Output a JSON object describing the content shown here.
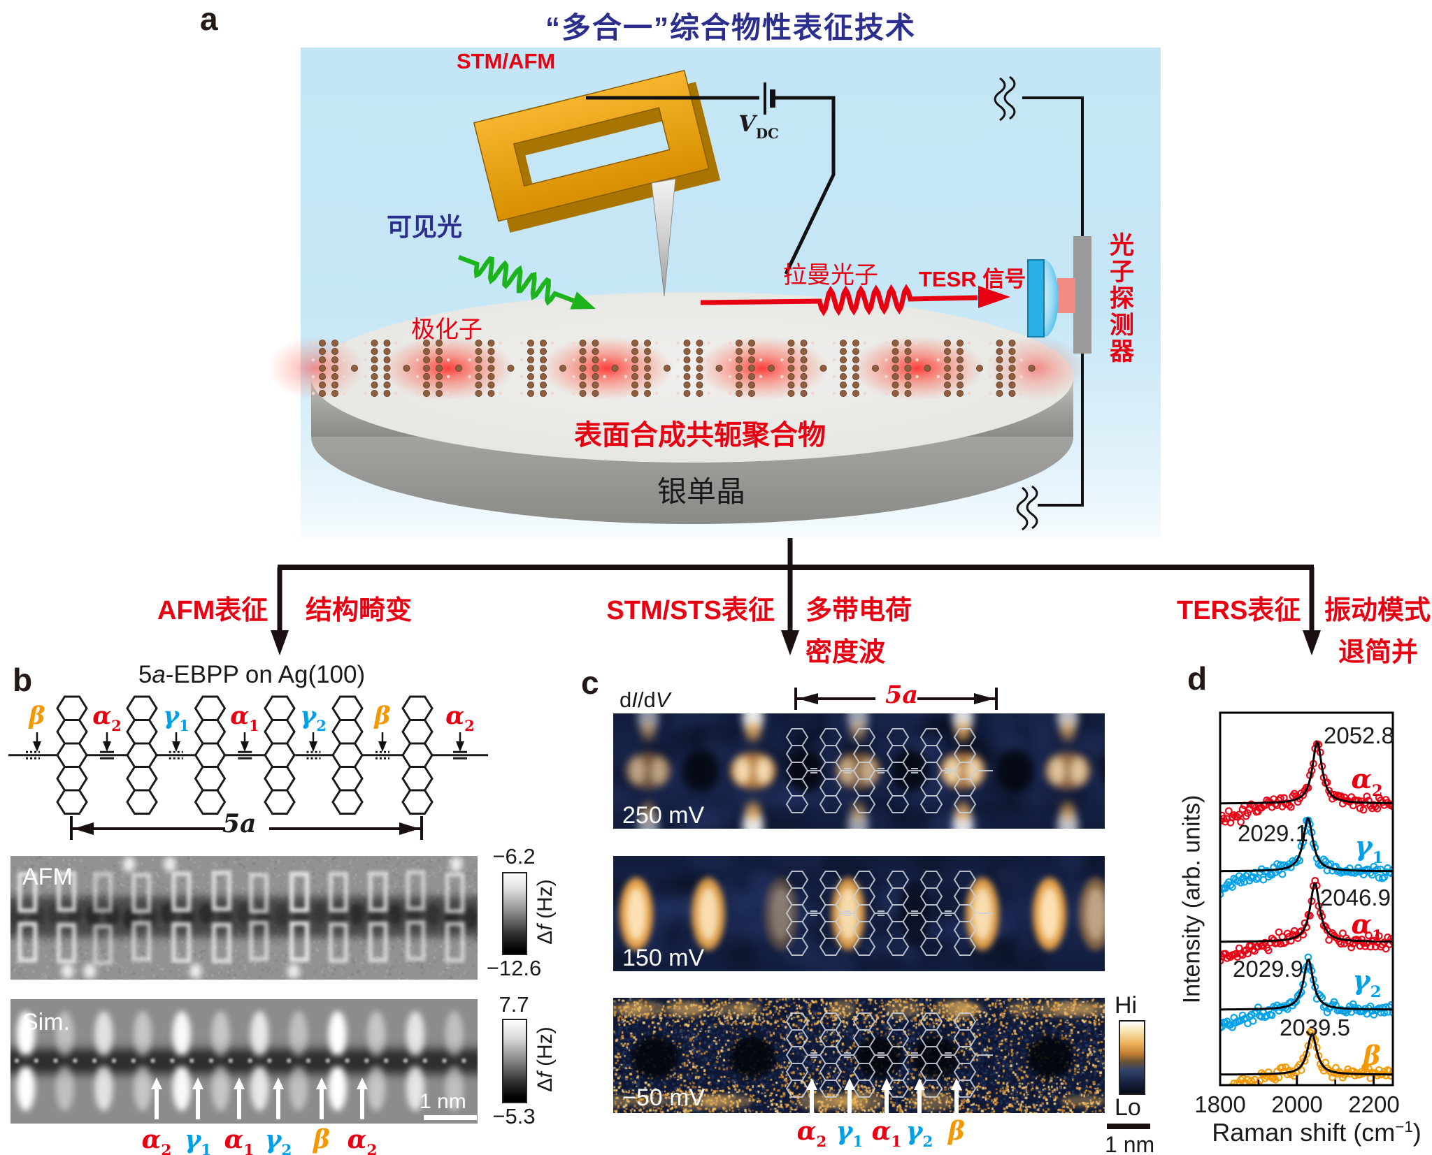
{
  "colors": {
    "red": "#e60012",
    "blue": "#00a0e9",
    "orange": "#f39800",
    "navy": "#2b2e8c",
    "green": "#1db31d",
    "gold": "#eba312"
  },
  "panel_a": {
    "label": "a",
    "title": "“多合一”综合物性表征技术",
    "stm_afm_label": "STM/AFM",
    "bias_label": [
      {
        "t": "V",
        "i": true
      },
      {
        "t": "DC",
        "sub": true
      }
    ],
    "visible_light_label": "可见光",
    "polaron_label": "极化子",
    "raman_photon_label": "拉曼光子",
    "tesr_label": "TESR 信号",
    "detector_label": "光子探测器",
    "polymer_label": "表面合成共轭聚合物",
    "substrate_label": "银单晶"
  },
  "branches": {
    "afm_method": "AFM表征",
    "afm_result": "结构畸变",
    "stm_method": "STM/STS表征",
    "stm_result_1": "多带电荷",
    "stm_result_2": "密度波",
    "ters_method": "TERS表征",
    "ters_result_1": "振动模式",
    "ters_result_2": "退简并"
  },
  "panel_b": {
    "label": "b",
    "title": [
      {
        "t": "5"
      },
      {
        "t": "a",
        "i": true
      },
      {
        "t": "-EBPP on Ag(100)"
      }
    ],
    "bond_labels": [
      {
        "base": "β",
        "sub": "",
        "color": "orange"
      },
      {
        "base": "α",
        "sub": "2",
        "color": "red"
      },
      {
        "base": "γ",
        "sub": "1",
        "color": "blue"
      },
      {
        "base": "α",
        "sub": "1",
        "color": "red"
      },
      {
        "base": "γ",
        "sub": "2",
        "color": "blue"
      },
      {
        "base": "β",
        "sub": "",
        "color": "orange"
      },
      {
        "base": "α",
        "sub": "2",
        "color": "red"
      }
    ],
    "span_label": [
      {
        "t": "5"
      },
      {
        "t": "a",
        "i": true
      }
    ],
    "afm_image_label": "AFM",
    "sim_image_label": "Sim.",
    "afm_colorbar": {
      "max": "−6.2",
      "min": "−12.6",
      "label": [
        {
          "t": "Δ"
        },
        {
          "t": "f",
          "i": true
        },
        {
          "t": " (Hz)"
        }
      ]
    },
    "sim_colorbar": {
      "max": "7.7",
      "min": "−5.3",
      "label": [
        {
          "t": "Δ"
        },
        {
          "t": "f",
          "i": true
        },
        {
          "t": " (Hz)"
        }
      ]
    },
    "scale_bar_label": "1 nm",
    "site_labels": [
      {
        "base": "α",
        "sub": "2",
        "color": "red"
      },
      {
        "base": "γ",
        "sub": "1",
        "color": "blue"
      },
      {
        "base": "α",
        "sub": "1",
        "color": "red"
      },
      {
        "base": "γ",
        "sub": "2",
        "color": "blue"
      },
      {
        "base": "β",
        "sub": "",
        "color": "orange"
      },
      {
        "base": "α",
        "sub": "2",
        "color": "red"
      }
    ]
  },
  "panel_c": {
    "label": "c",
    "map_type_label": [
      {
        "t": "d"
      },
      {
        "t": "I",
        "i": true
      },
      {
        "t": "/d"
      },
      {
        "t": "V",
        "i": true
      }
    ],
    "span_label": [
      {
        "t": "5"
      },
      {
        "t": "a",
        "i": true
      }
    ],
    "biases": [
      "250 mV",
      "150 mV",
      "−50 mV"
    ],
    "colorbar": {
      "max": "Hi",
      "min": "Lo"
    },
    "scale_bar_label": "1 nm",
    "site_labels": [
      {
        "base": "α",
        "sub": "2",
        "color": "red"
      },
      {
        "base": "γ",
        "sub": "1",
        "color": "blue"
      },
      {
        "base": "α",
        "sub": "1",
        "color": "red"
      },
      {
        "base": "γ",
        "sub": "2",
        "color": "blue"
      },
      {
        "base": "β",
        "sub": "",
        "color": "orange"
      }
    ]
  },
  "panel_d": {
    "label": "d"
  },
  "chart_data": {
    "type": "scatter",
    "title": "",
    "xlabel": "Raman shift (cm⁻¹)",
    "xlabel_rich": [
      {
        "t": "Raman shift (cm"
      },
      {
        "t": "−1",
        "sup": true
      },
      {
        "t": ")"
      }
    ],
    "ylabel": "Intensity (arb. units)",
    "xlim": [
      1800,
      2250
    ],
    "xticks": [
      1800,
      2000,
      2200
    ],
    "xticks_minor": [
      1900,
      2100
    ],
    "grid": false,
    "legend": "none",
    "style": "five vertically offset TERS spectra, open-circle scatter with black Lorentzian fits",
    "series": [
      {
        "name": {
          "base": "α",
          "sub": "2"
        },
        "color_key": "red",
        "peak_center": 2052.8,
        "peak_label": "2052.8"
      },
      {
        "name": {
          "base": "γ",
          "sub": "1"
        },
        "color_key": "blue",
        "peak_center": 2029.1,
        "peak_label": "2029.1"
      },
      {
        "name": {
          "base": "α",
          "sub": "1"
        },
        "color_key": "red",
        "peak_center": 2046.9,
        "peak_label": "2046.9"
      },
      {
        "name": {
          "base": "γ",
          "sub": "2"
        },
        "color_key": "blue",
        "peak_center": 2029.9,
        "peak_label": "2029.9"
      },
      {
        "name": {
          "base": "β",
          "sub": ""
        },
        "color_key": "orange",
        "peak_center": 2039.5,
        "peak_label": "2039.5"
      }
    ]
  }
}
